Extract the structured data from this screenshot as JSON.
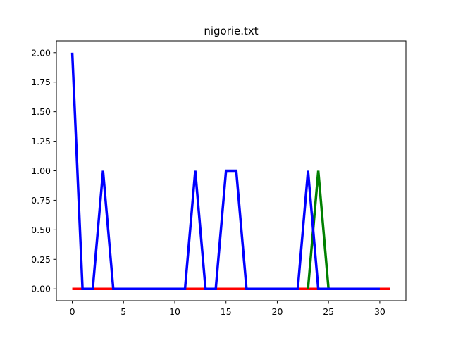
{
  "chart_data": {
    "type": "line",
    "title": "nigorie.txt",
    "xlabel": "",
    "ylabel": "",
    "xlim": [
      -1.55,
      32.55
    ],
    "ylim": [
      -0.1,
      2.1
    ],
    "xticks": [
      0,
      5,
      10,
      15,
      20,
      25,
      30
    ],
    "xtick_labels": [
      "0",
      "5",
      "10",
      "15",
      "20",
      "25",
      "30"
    ],
    "yticks": [
      0,
      0.25,
      0.5,
      0.75,
      1,
      1.25,
      1.5,
      1.75,
      2
    ],
    "ytick_labels": [
      "0.00",
      "0.25",
      "0.50",
      "0.75",
      "1.00",
      "1.25",
      "1.50",
      "1.75",
      "2.00"
    ],
    "grid": false,
    "series": [
      {
        "color": "#ff0000",
        "x": [
          0,
          31
        ],
        "y": [
          0,
          0
        ]
      },
      {
        "color": "#008000",
        "x": [
          23,
          24,
          25
        ],
        "y": [
          0,
          1,
          0
        ]
      },
      {
        "color": "#0000ff",
        "x": [
          0,
          1,
          2,
          3,
          4,
          5,
          6,
          7,
          8,
          9,
          10,
          11,
          12,
          13,
          14,
          15,
          16,
          17,
          18,
          19,
          20,
          21,
          22,
          23,
          24,
          25,
          26,
          27,
          28,
          29,
          30
        ],
        "y": [
          2,
          0,
          0,
          1,
          0,
          0,
          0,
          0,
          0,
          0,
          0,
          0,
          1,
          0,
          0,
          1,
          1,
          0,
          0,
          0,
          0,
          0,
          0,
          1,
          0,
          0,
          0,
          0,
          0,
          0,
          0
        ]
      }
    ]
  }
}
